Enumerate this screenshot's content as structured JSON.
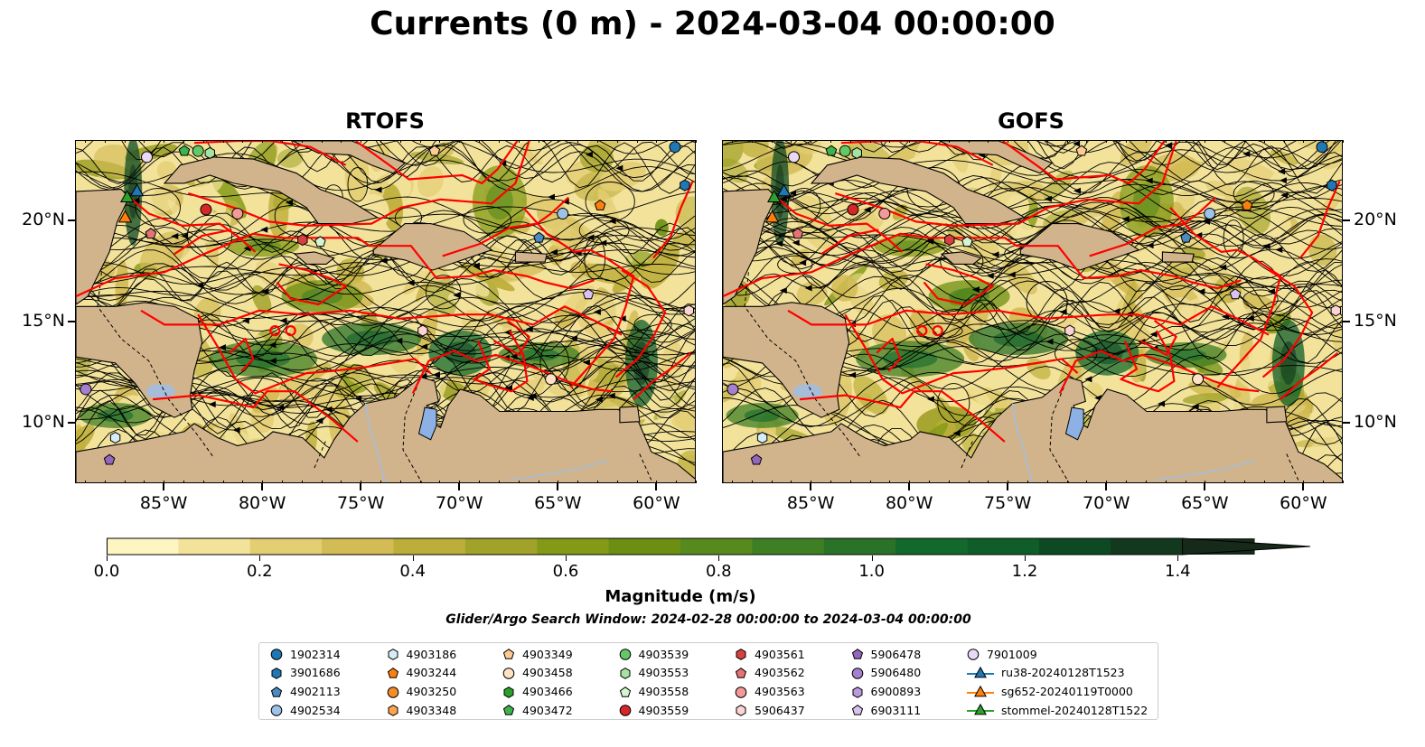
{
  "title": "Currents (0 m) - 2024-03-04 00:00:00",
  "panels": [
    {
      "id": "rtofs",
      "title": "RTOFS"
    },
    {
      "id": "gofs",
      "title": "GOFS"
    }
  ],
  "axes": {
    "lon_ticks": [
      "85°W",
      "80°W",
      "75°W",
      "70°W",
      "65°W",
      "60°W"
    ],
    "lat_ticks": [
      "20°N",
      "15°N",
      "10°N"
    ],
    "lon_range": [
      -89.5,
      -58
    ],
    "lat_range": [
      7,
      24
    ]
  },
  "colorbar": {
    "label": "Magnitude (m/s)",
    "ticks": [
      "0.0",
      "0.2",
      "0.4",
      "0.6",
      "0.8",
      "1.0",
      "1.2",
      "1.4"
    ],
    "range": [
      0,
      1.5
    ],
    "extend": "max",
    "colors": [
      "#fdf6c2",
      "#f2e29a",
      "#e4ce74",
      "#d3bb55",
      "#bdae3a",
      "#a1a22a",
      "#849a17",
      "#6c8f13",
      "#578a1e",
      "#3f7f24",
      "#2a7228",
      "#13692c",
      "#0f5e2a",
      "#0d4a24",
      "#12381d",
      "#17291a"
    ]
  },
  "search_window": "Glider/Argo Search Window: 2024-02-28 00:00:00 to 2024-03-04 00:00:00",
  "colors": {
    "land": "#d2b48c",
    "eez": "#ff0000",
    "lake": "#8db1e4",
    "river": "#a6bdd9"
  },
  "legend": [
    {
      "label": "1902314",
      "marker": "circle",
      "color": "#1f77b4"
    },
    {
      "label": "3901686",
      "marker": "hexagon",
      "color": "#1f77b4"
    },
    {
      "label": "4902113",
      "marker": "pentagon",
      "color": "#4b8bc0"
    },
    {
      "label": "4902534",
      "marker": "circle",
      "color": "#9ec3e8"
    },
    {
      "label": "4903186",
      "marker": "hexagon",
      "color": "#d7ecfa"
    },
    {
      "label": "4903244",
      "marker": "pentagon",
      "color": "#ff7f0e"
    },
    {
      "label": "4903250",
      "marker": "circle",
      "color": "#f58c2a"
    },
    {
      "label": "4903348",
      "marker": "hexagon",
      "color": "#ffa352"
    },
    {
      "label": "4903349",
      "marker": "pentagon",
      "color": "#ffcb92"
    },
    {
      "label": "4903458",
      "marker": "circle",
      "color": "#ffe2c2"
    },
    {
      "label": "4903466",
      "marker": "hexagon",
      "color": "#2ca02c"
    },
    {
      "label": "4903472",
      "marker": "pentagon",
      "color": "#3cb44b"
    },
    {
      "label": "4903539",
      "marker": "circle",
      "color": "#66c766"
    },
    {
      "label": "4903553",
      "marker": "hexagon",
      "color": "#a6e3a0"
    },
    {
      "label": "4903558",
      "marker": "pentagon",
      "color": "#d4f5cf"
    },
    {
      "label": "4903559",
      "marker": "circle",
      "color": "#d62728"
    },
    {
      "label": "4903561",
      "marker": "hexagon",
      "color": "#d84040"
    },
    {
      "label": "4903562",
      "marker": "pentagon",
      "color": "#e57373"
    },
    {
      "label": "4903563",
      "marker": "circle",
      "color": "#f29a9a"
    },
    {
      "label": "5906437",
      "marker": "hexagon",
      "color": "#fcd4d4"
    },
    {
      "label": "5906478",
      "marker": "pentagon",
      "color": "#9467bd"
    },
    {
      "label": "5906480",
      "marker": "circle",
      "color": "#a67fcf"
    },
    {
      "label": "6900893",
      "marker": "hexagon",
      "color": "#bb9ae0"
    },
    {
      "label": "6903111",
      "marker": "pentagon",
      "color": "#d9c2f0"
    },
    {
      "label": "7901009",
      "marker": "circle",
      "color": "#ead8f7"
    },
    {
      "label": "ru38-20240128T1523",
      "marker": "triangle-line",
      "color": "#1f77b4"
    },
    {
      "label": "sg652-20240119T0000",
      "marker": "triangle-line",
      "color": "#ff7f0e"
    },
    {
      "label": "stommel-20240128T1522",
      "marker": "triangle-line",
      "color": "#2ca02c"
    }
  ]
}
